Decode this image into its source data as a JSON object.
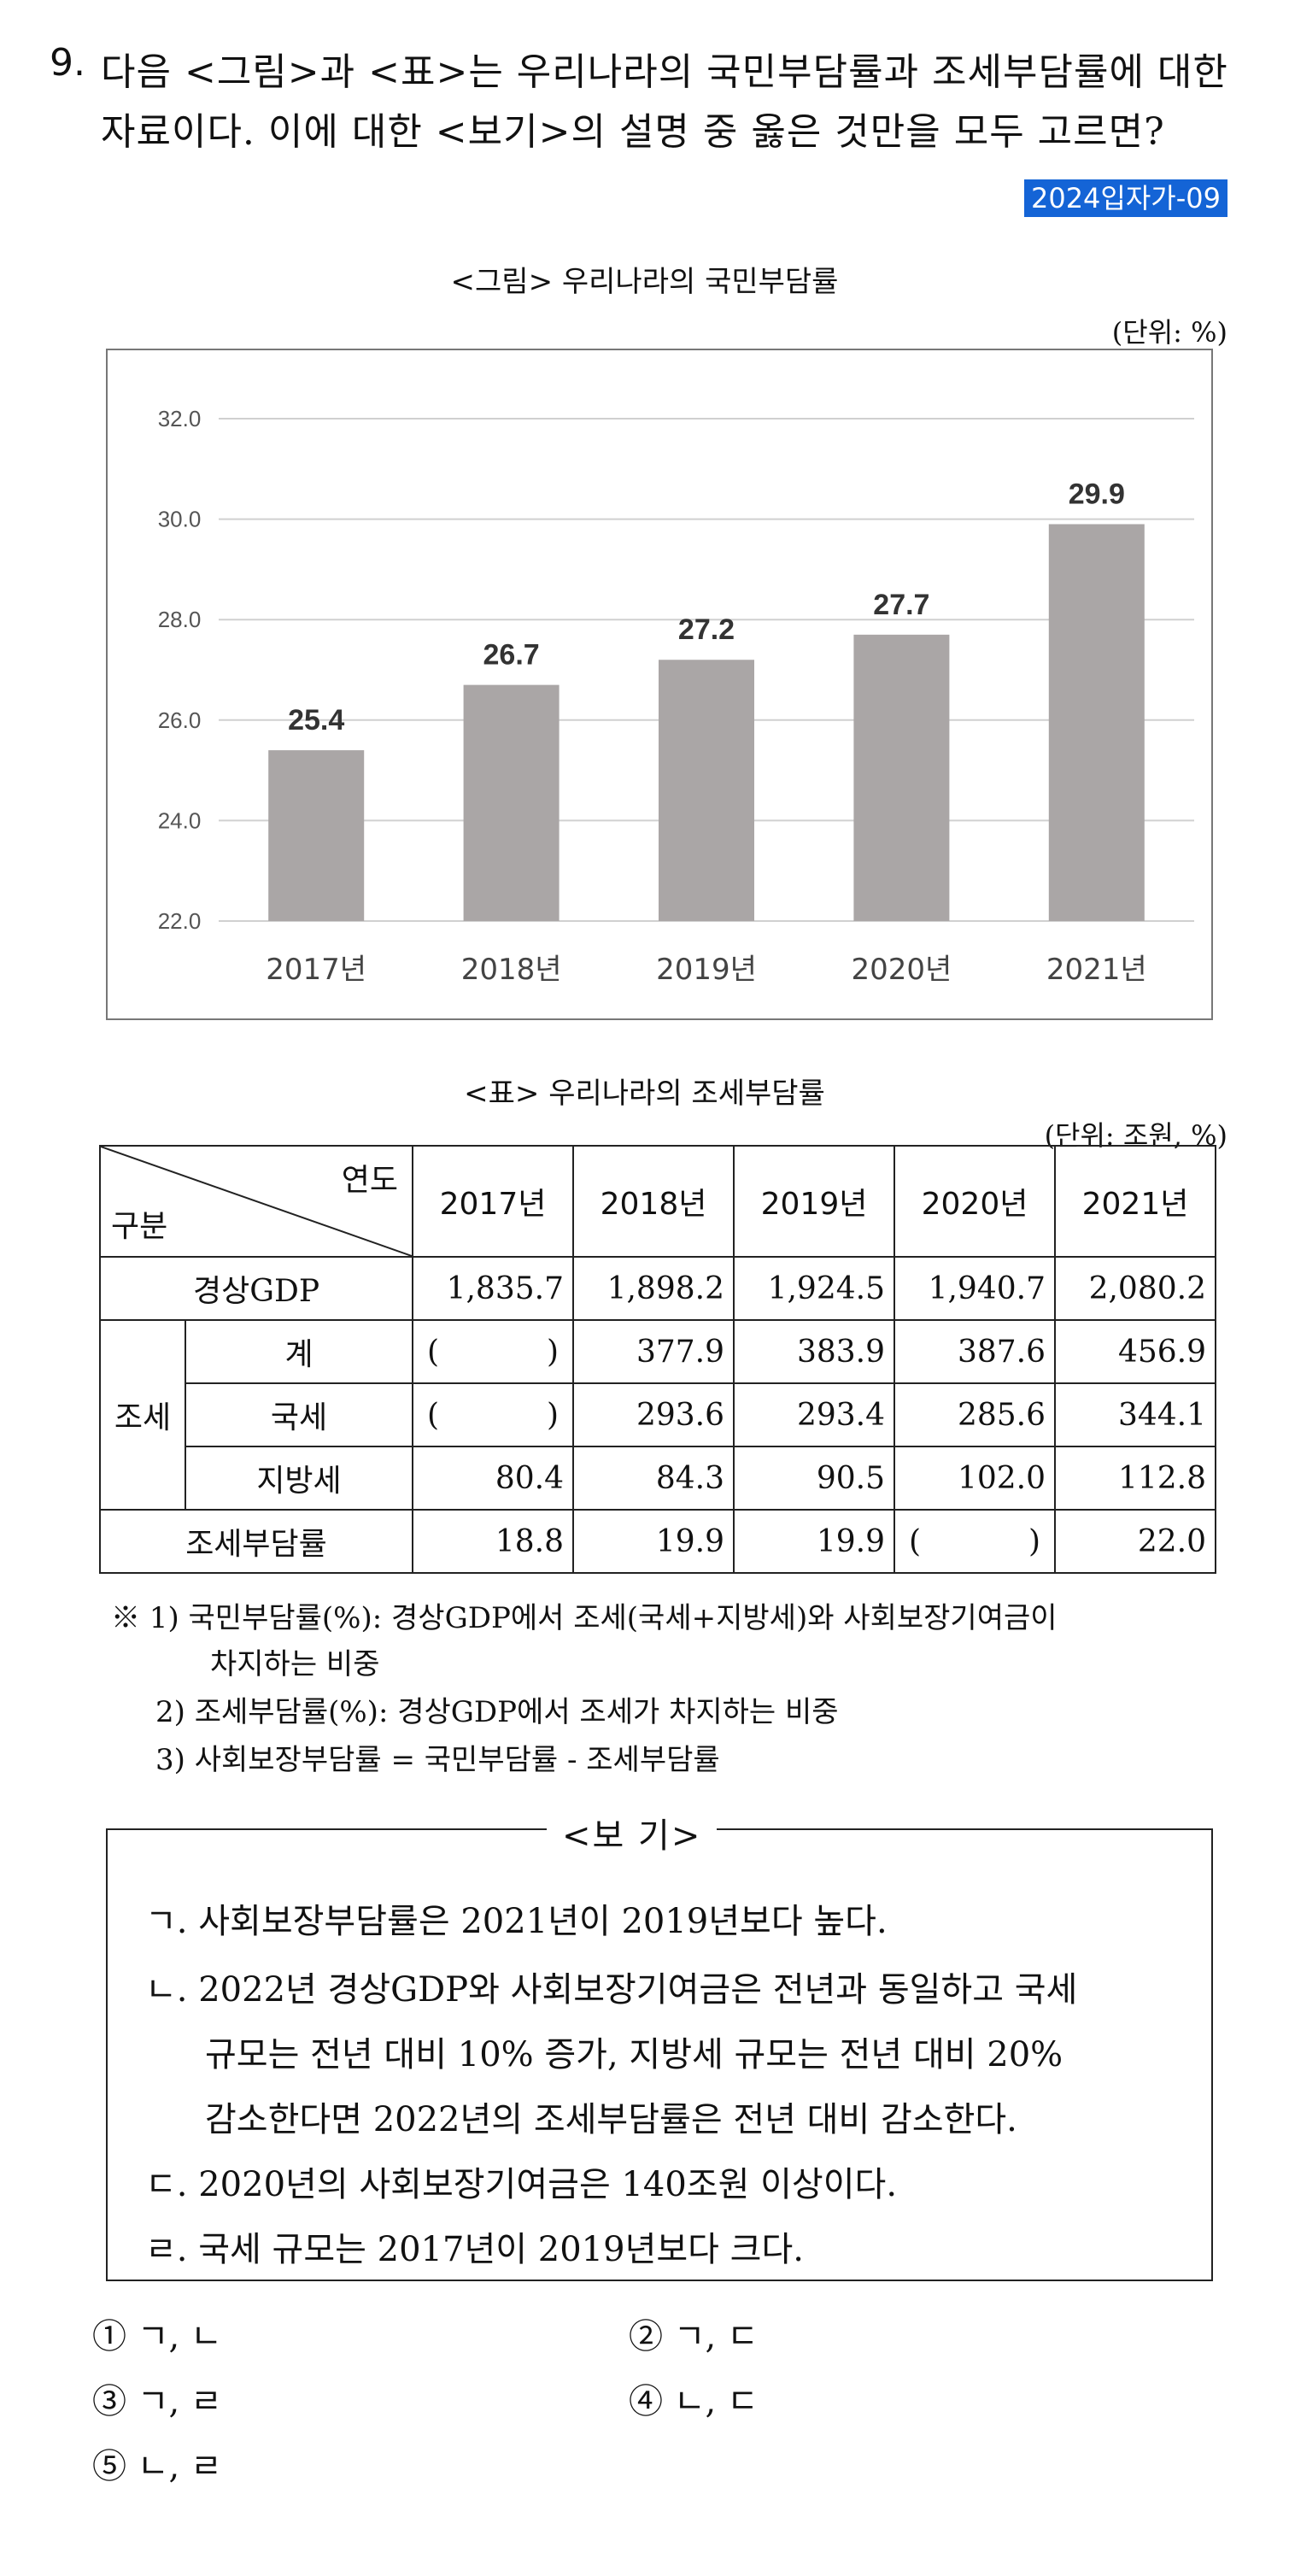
{
  "question": {
    "number": "9.",
    "line1": "다음 <그림>과 <표>는 우리나라의 국민부담률과 조세부담률에 대한",
    "line2": "자료이다. 이에 대한 <보기>의 설명 중 옳은 것만을 모두 고르면?",
    "tag": "2024입자가-09"
  },
  "figure": {
    "title": "<그림> 우리나라의 국민부담률",
    "unit": "(단위: %)"
  },
  "chart_data": {
    "type": "bar",
    "categories": [
      "2017년",
      "2018년",
      "2019년",
      "2020년",
      "2021년"
    ],
    "values": [
      25.4,
      26.7,
      27.2,
      27.7,
      29.9
    ],
    "value_labels": [
      "25.4",
      "26.7",
      "27.2",
      "27.7",
      "29.9"
    ],
    "yticks": [
      "22.0",
      "24.0",
      "26.0",
      "28.0",
      "30.0",
      "32.0"
    ],
    "ylim": [
      22,
      32
    ],
    "grid": true,
    "bar_color": "#aaa6a6"
  },
  "table": {
    "title": "<표> 우리나라의 조세부담률",
    "unit": "(단위: 조원, %)",
    "corner_top": "연도",
    "corner_bottom": "구분",
    "years": [
      "2017년",
      "2018년",
      "2019년",
      "2020년",
      "2021년"
    ],
    "gdp_label": "경상GDP",
    "gdp": [
      "1,835.7",
      "1,898.2",
      "1,924.5",
      "1,940.7",
      "2,080.2"
    ],
    "tax_group": "조세",
    "total_label": "계",
    "total": [
      "",
      "377.9",
      "383.9",
      "387.6",
      "456.9"
    ],
    "national_label": "국세",
    "national": [
      "",
      "293.6",
      "293.4",
      "285.6",
      "344.1"
    ],
    "local_label": "지방세",
    "local": [
      "80.4",
      "84.3",
      "90.5",
      "102.0",
      "112.8"
    ],
    "rate_label": "조세부담률",
    "rate": [
      "18.8",
      "19.9",
      "19.9",
      "",
      "22.0"
    ],
    "paren_open": "(",
    "paren_close": ")"
  },
  "notes": {
    "n1": "※ 1) 국민부담률(%): 경상GDP에서 조세(국세+지방세)와 사회보장기여금이",
    "n1b": "차지하는 비중",
    "n2": "2) 조세부담률(%): 경상GDP에서 조세가 차지하는 비중",
    "n3": "3) 사회보장부담률 = 국민부담률 - 조세부담률"
  },
  "bogi": {
    "title": "<보  기>",
    "items": [
      "ㄱ. 사회보장부담률은 2021년이 2019년보다 높다.",
      "ㄴ. 2022년 경상GDP와 사회보장기여금은 전년과 동일하고 국세",
      "규모는 전년 대비 10% 증가, 지방세 규모는 전년 대비 20%",
      "감소한다면 2022년의 조세부담률은 전년 대비 감소한다.",
      "ㄷ. 2020년의 사회보장기여금은 140조원 이상이다.",
      "ㄹ. 국세 규모는 2017년이 2019년보다 크다."
    ]
  },
  "choices": [
    "① ㄱ, ㄴ",
    "② ㄱ, ㄷ",
    "③ ㄱ, ㄹ",
    "④ ㄴ, ㄷ",
    "⑤ ㄴ, ㄹ"
  ]
}
